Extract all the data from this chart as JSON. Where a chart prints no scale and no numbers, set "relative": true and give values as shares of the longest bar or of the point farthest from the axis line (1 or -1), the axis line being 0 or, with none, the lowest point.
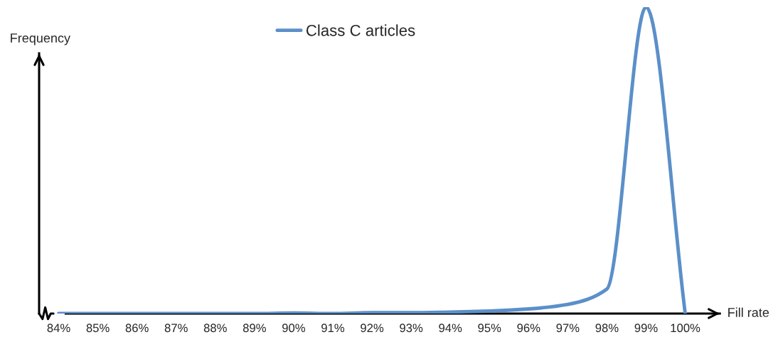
{
  "chart_data": {
    "type": "line",
    "relative": true,
    "xlabel": "Fill rate",
    "ylabel": "Frequency",
    "categories": [
      "84%",
      "85%",
      "86%",
      "87%",
      "88%",
      "89%",
      "90%",
      "91%",
      "92%",
      "93%",
      "94%",
      "95%",
      "96%",
      "97%",
      "98%",
      "99%",
      "100%"
    ],
    "series": [
      {
        "name": "Class C articles",
        "color": "#5b8fc9",
        "values": [
          0,
          0,
          0,
          0,
          0,
          0,
          0.002,
          0,
          0.003,
          0.003,
          0.005,
          0.008,
          0.015,
          0.03,
          0.08,
          1,
          0
        ]
      }
    ],
    "legend": "top",
    "grid": false,
    "marker": "none",
    "line_style": "solid"
  }
}
